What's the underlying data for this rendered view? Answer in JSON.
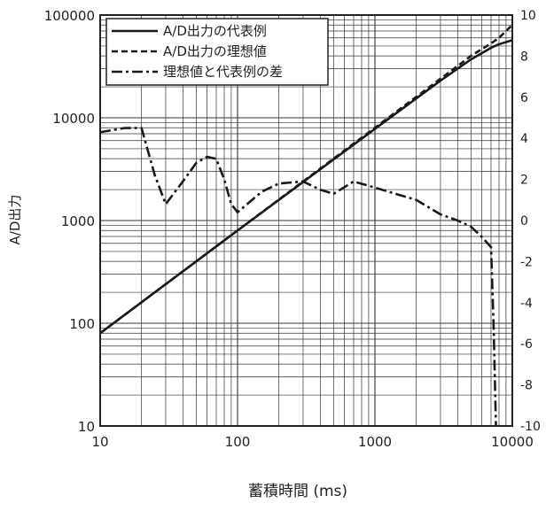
{
  "chart_data": {
    "type": "line",
    "title": "",
    "xlabel": "蓄積時間 (ms)",
    "ylabel": "A/D出力",
    "y2label": "",
    "x_scale": "log",
    "y_scale": "log",
    "xlim": [
      10,
      10000
    ],
    "ylim": [
      10,
      100000
    ],
    "y2lim": [
      -10,
      10
    ],
    "x_ticks": [
      "10",
      "100",
      "1000",
      "10000"
    ],
    "y_ticks": [
      "10",
      "100",
      "1000",
      "10000",
      "100000"
    ],
    "y2_ticks": [
      "-10",
      "-8",
      "-6",
      "-4",
      "-2",
      "0",
      "2",
      "4",
      "6",
      "8",
      "10"
    ],
    "grid": true,
    "legend_position": "top-left",
    "series": [
      {
        "name": "A/D出力の代表例",
        "axis": "left",
        "style": "solid",
        "x": [
          10,
          100,
          1000,
          3000,
          5000,
          7000,
          8000,
          10000
        ],
        "y": [
          80,
          800,
          7800,
          23000,
          37000,
          48000,
          52000,
          57000
        ]
      },
      {
        "name": "A/D出力の理想値",
        "axis": "left",
        "style": "dashed",
        "x": [
          10,
          100,
          1000,
          3000,
          5000,
          7000,
          8000,
          9000,
          10000
        ],
        "y": [
          80,
          800,
          8000,
          24000,
          40000,
          53000,
          60000,
          70000,
          80000
        ]
      },
      {
        "name": "理想値と代表例の差",
        "axis": "right",
        "style": "dashdot",
        "x": [
          10,
          15,
          20,
          25,
          30,
          40,
          50,
          60,
          70,
          80,
          90,
          100,
          150,
          200,
          300,
          400,
          500,
          700,
          1000,
          2000,
          3000,
          4000,
          5000,
          6000,
          7000,
          7300,
          7600
        ],
        "y": [
          4.3,
          4.5,
          4.5,
          2.2,
          0.8,
          1.9,
          2.8,
          3.1,
          3.0,
          2.0,
          0.8,
          0.4,
          1.4,
          1.8,
          1.9,
          1.5,
          1.3,
          1.9,
          1.6,
          1.0,
          0.3,
          0.0,
          -0.3,
          -0.8,
          -1.3,
          -5,
          -10
        ]
      }
    ]
  }
}
